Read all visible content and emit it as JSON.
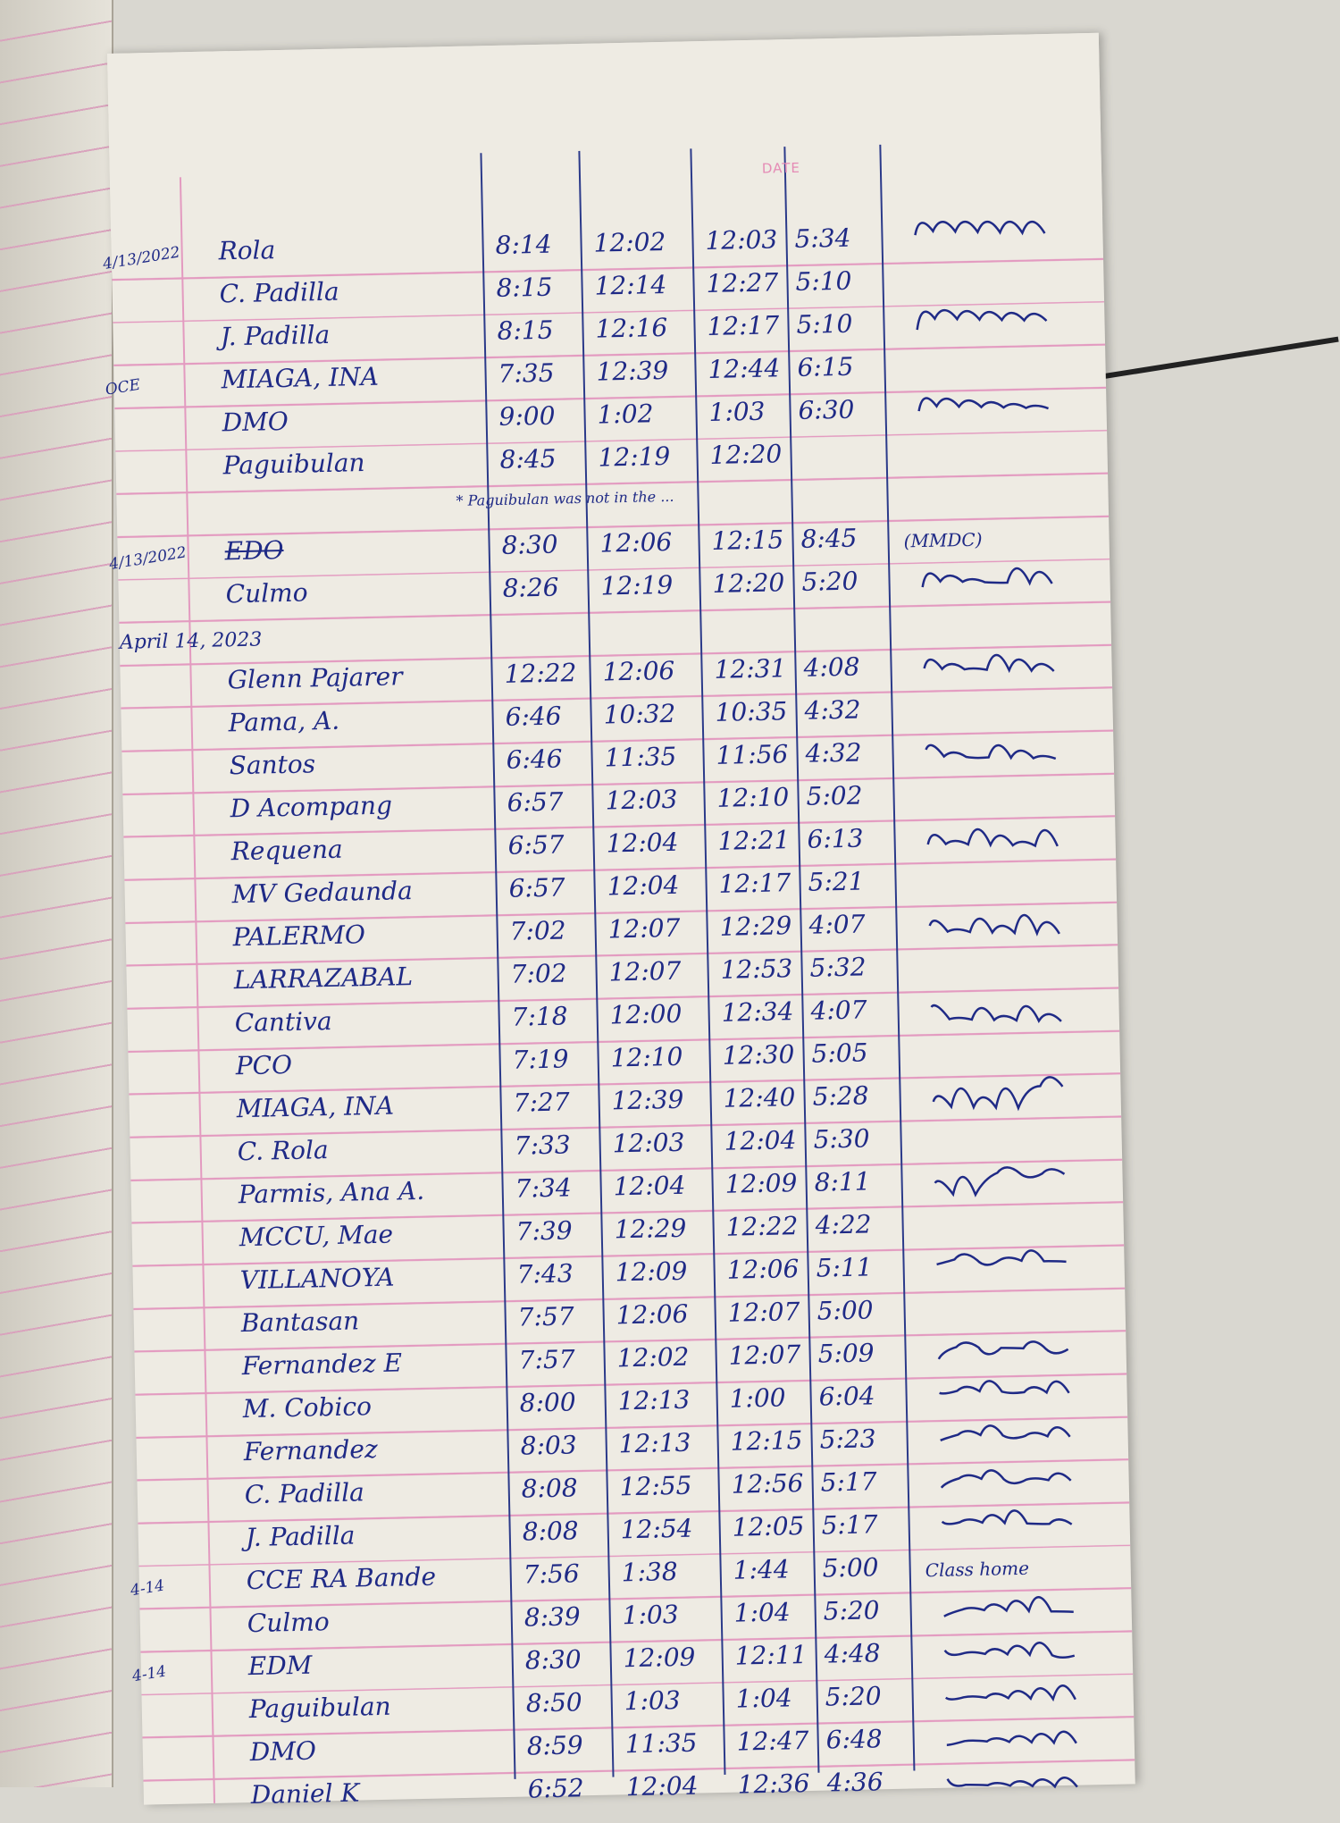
{
  "header": {
    "date_label": "DATE"
  },
  "entries": [
    {
      "date": "4/13/2022",
      "name": "Rola",
      "t": [
        "8:14",
        "12:02",
        "12:03",
        "5:34"
      ]
    },
    {
      "name": "C. Padilla",
      "t": [
        "8:15",
        "12:14",
        "12:27",
        "5:10"
      ]
    },
    {
      "name": "J. Padilla",
      "t": [
        "8:15",
        "12:16",
        "12:17",
        "5:10"
      ]
    },
    {
      "date": "OCE",
      "name": "MIAGA, INA",
      "t": [
        "7:35",
        "12:39",
        "12:44",
        "6:15"
      ]
    },
    {
      "name": "DMO",
      "t": [
        "9:00",
        "1:02",
        "1:03",
        "6:30"
      ]
    },
    {
      "name": "Paguibulan",
      "t": [
        "8:45",
        "12:19",
        "12:20",
        ""
      ]
    },
    {
      "type": "note",
      "text": "* Paguibulan was not in the ..."
    },
    {
      "date": "4/13/2022",
      "name": "EDO",
      "struck": true,
      "t": [
        "8:30",
        "12:06",
        "12:15",
        "8:45"
      ],
      "note": "(MMDC)"
    },
    {
      "name": "Culmo",
      "t": [
        "8:26",
        "12:19",
        "12:20",
        "5:20"
      ]
    },
    {
      "type": "date",
      "text": "April 14, 2023"
    },
    {
      "name": "Glenn Pajarer",
      "t": [
        "12:22",
        "12:06",
        "12:31",
        "4:08"
      ]
    },
    {
      "name": "Pama, A.",
      "t": [
        "6:46",
        "10:32",
        "10:35",
        "4:32"
      ]
    },
    {
      "name": "Santos",
      "t": [
        "6:46",
        "11:35",
        "11:56",
        "4:32"
      ]
    },
    {
      "name": "D Acompang",
      "t": [
        "6:57",
        "12:03",
        "12:10",
        "5:02"
      ]
    },
    {
      "name": "Requena",
      "t": [
        "6:57",
        "12:04",
        "12:21",
        "6:13"
      ]
    },
    {
      "name": "MV Gedaunda",
      "t": [
        "6:57",
        "12:04",
        "12:17",
        "5:21"
      ]
    },
    {
      "name": "PALERMO",
      "t": [
        "7:02",
        "12:07",
        "12:29",
        "4:07"
      ]
    },
    {
      "name": "LARRAZABAL",
      "t": [
        "7:02",
        "12:07",
        "12:53",
        "5:32"
      ]
    },
    {
      "name": "Cantiva",
      "t": [
        "7:18",
        "12:00",
        "12:34",
        "4:07"
      ]
    },
    {
      "name": "PCO",
      "t": [
        "7:19",
        "12:10",
        "12:30",
        "5:05"
      ]
    },
    {
      "name": "MIAGA, INA",
      "t": [
        "7:27",
        "12:39",
        "12:40",
        "5:28"
      ]
    },
    {
      "name": "C. Rola",
      "t": [
        "7:33",
        "12:03",
        "12:04",
        "5:30"
      ]
    },
    {
      "name": "Parmis, Ana A.",
      "t": [
        "7:34",
        "12:04",
        "12:09",
        "8:11"
      ]
    },
    {
      "name": "MCCU, Mae",
      "t": [
        "7:39",
        "12:29",
        "12:22",
        "4:22"
      ]
    },
    {
      "name": "VILLANOYA",
      "t": [
        "7:43",
        "12:09",
        "12:06",
        "5:11"
      ]
    },
    {
      "name": "Bantasan",
      "t": [
        "7:57",
        "12:06",
        "12:07",
        "5:00"
      ]
    },
    {
      "name": "Fernandez E",
      "t": [
        "7:57",
        "12:02",
        "12:07",
        "5:09"
      ]
    },
    {
      "name": "M. Cobico",
      "t": [
        "8:00",
        "12:13",
        "1:00",
        "6:04"
      ]
    },
    {
      "name": "Fernandez",
      "t": [
        "8:03",
        "12:13",
        "12:15",
        "5:23"
      ]
    },
    {
      "name": "C. Padilla",
      "t": [
        "8:08",
        "12:55",
        "12:56",
        "5:17"
      ]
    },
    {
      "name": "J. Padilla",
      "t": [
        "8:08",
        "12:54",
        "12:05",
        "5:17"
      ]
    },
    {
      "date": "4-14",
      "name": "CCE RA Bande",
      "t": [
        "7:56",
        "1:38",
        "1:44",
        "5:00"
      ],
      "note": "Class home"
    },
    {
      "name": "Culmo",
      "t": [
        "8:39",
        "1:03",
        "1:04",
        "5:20"
      ]
    },
    {
      "date": "4-14",
      "name": "EDM",
      "t": [
        "8:30",
        "12:09",
        "12:11",
        "4:48"
      ]
    },
    {
      "name": "Paguibulan",
      "t": [
        "8:50",
        "1:03",
        "1:04",
        "5:20"
      ]
    },
    {
      "name": "DMO",
      "t": [
        "8:59",
        "11:35",
        "12:47",
        "6:48"
      ]
    },
    {
      "name": "Daniel K",
      "t": [
        "6:52",
        "12:04",
        "12:36",
        "4:36"
      ]
    }
  ],
  "colors": {
    "ink": "#1f2a86",
    "rule": "#e39ac0",
    "paper": "#eeebe3"
  }
}
